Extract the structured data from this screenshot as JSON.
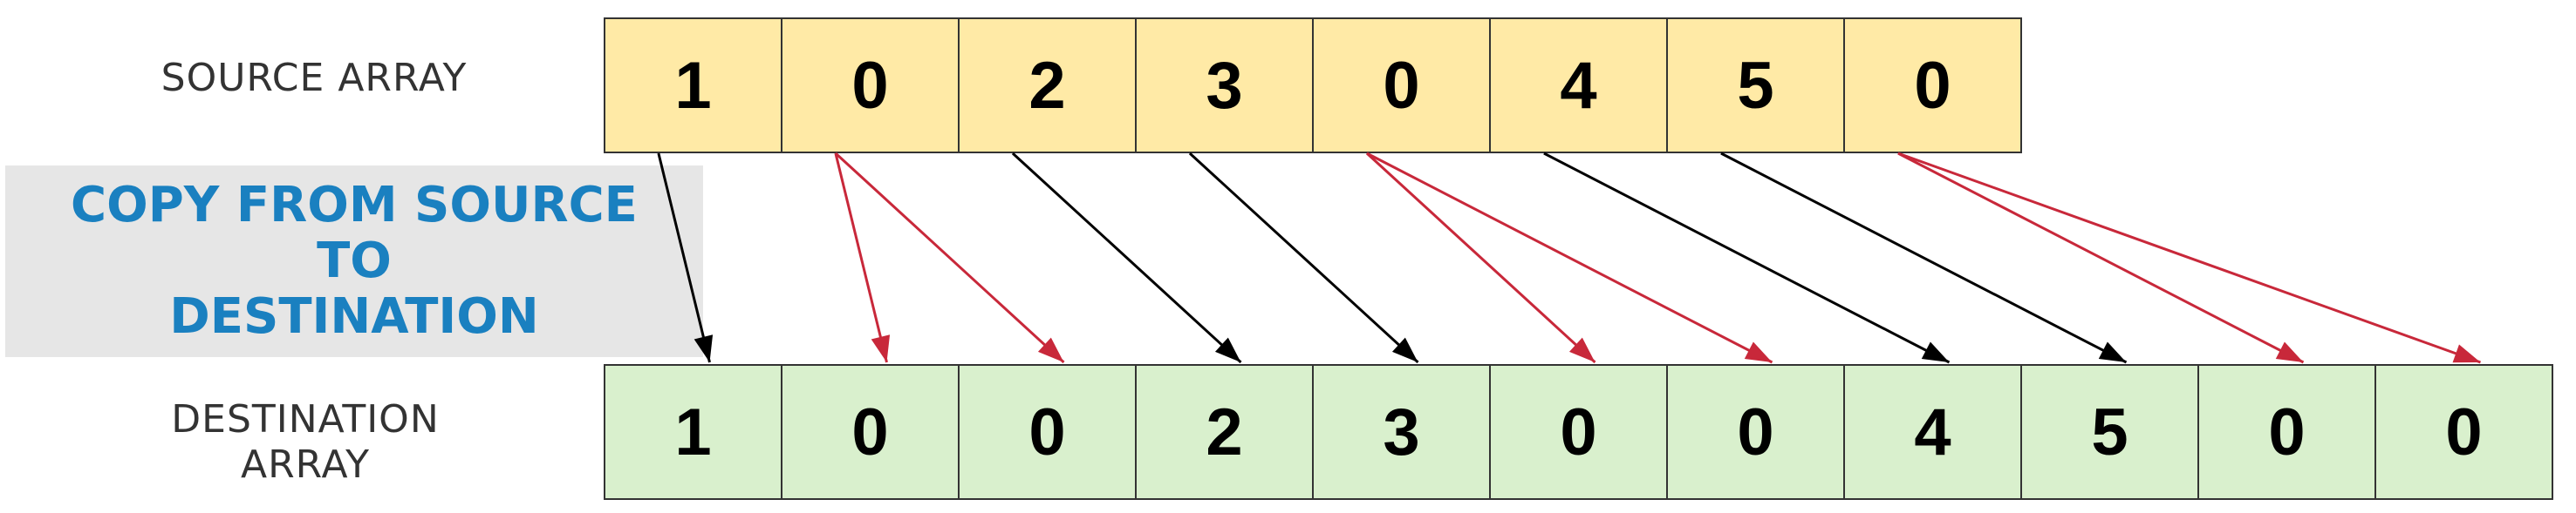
{
  "source_label": "SOURCE ARRAY",
  "destination_label_line1": "DESTINATION",
  "destination_label_line2": "ARRAY",
  "note_line1": "COPY FROM SOURCE TO",
  "note_line2": "DESTINATION",
  "source_values": [
    "1",
    "0",
    "2",
    "3",
    "0",
    "4",
    "5",
    "0"
  ],
  "destination_values": [
    "1",
    "0",
    "0",
    "2",
    "3",
    "0",
    "0",
    "4",
    "5",
    "0",
    "0"
  ],
  "mappings": [
    {
      "from": 0,
      "to": 0,
      "color": "#000000"
    },
    {
      "from": 1,
      "to": 1,
      "color": "#c8283a"
    },
    {
      "from": 1,
      "to": 2,
      "color": "#c8283a"
    },
    {
      "from": 2,
      "to": 3,
      "color": "#000000"
    },
    {
      "from": 3,
      "to": 4,
      "color": "#000000"
    },
    {
      "from": 4,
      "to": 5,
      "color": "#c8283a"
    },
    {
      "from": 4,
      "to": 6,
      "color": "#c8283a"
    },
    {
      "from": 5,
      "to": 7,
      "color": "#000000"
    },
    {
      "from": 6,
      "to": 8,
      "color": "#000000"
    },
    {
      "from": 7,
      "to": 9,
      "color": "#c8283a"
    },
    {
      "from": 7,
      "to": 10,
      "color": "#c8283a"
    }
  ],
  "colors": {
    "source_fill": "#ffeaa6",
    "destination_fill": "#d9f0cd",
    "zero_arrow": "#c8283a",
    "nonzero_arrow": "#000000",
    "note_text": "#1a80c0",
    "note_background": "#e6e6e6"
  }
}
